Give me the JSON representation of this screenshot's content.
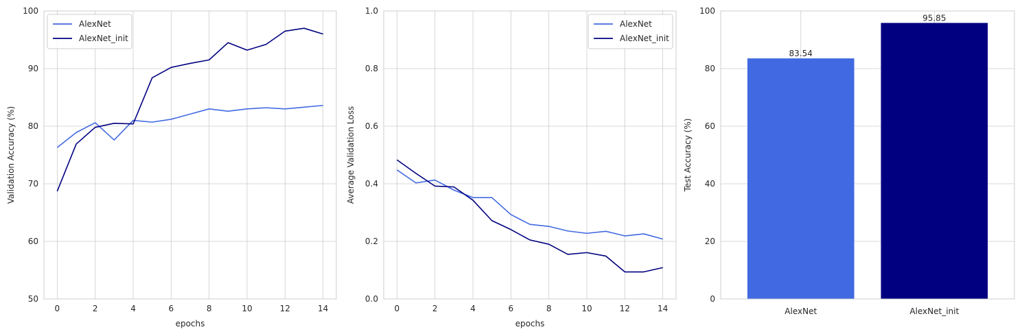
{
  "chart_data": [
    {
      "type": "line",
      "xlabel": "epochs",
      "ylabel": "Validation Accuracy (%)",
      "xlim": [
        -0.7,
        14.7
      ],
      "ylim": [
        50,
        100
      ],
      "xticks": [
        "0",
        "2",
        "4",
        "6",
        "8",
        "10",
        "12",
        "14"
      ],
      "yticks": [
        "50",
        "60",
        "70",
        "80",
        "90",
        "100"
      ],
      "grid": true,
      "legend_position": "upper left",
      "x": [
        0,
        1,
        2,
        3,
        4,
        5,
        6,
        7,
        8,
        9,
        10,
        11,
        12,
        13,
        14
      ],
      "series": [
        {
          "name": "AlexNet",
          "color": "#4169e1",
          "values": [
            76.3,
            78.9,
            80.6,
            77.6,
            81.0,
            80.7,
            81.2,
            82.1,
            83.0,
            82.6,
            83.0,
            83.2,
            83.0,
            83.3,
            83.6
          ]
        },
        {
          "name": "AlexNet_init",
          "color": "#000080",
          "values": [
            68.7,
            76.9,
            79.8,
            80.5,
            80.4,
            88.4,
            90.2,
            90.9,
            91.5,
            94.5,
            93.2,
            94.2,
            96.5,
            97.0,
            96.0
          ]
        }
      ]
    },
    {
      "type": "line",
      "xlabel": "epochs",
      "ylabel": "Average Validation Loss",
      "xlim": [
        -0.7,
        14.7
      ],
      "ylim": [
        0,
        1
      ],
      "xticks": [
        "0",
        "2",
        "4",
        "6",
        "8",
        "10",
        "12",
        "14"
      ],
      "yticks": [
        "0.0",
        "0.2",
        "0.4",
        "0.6",
        "0.8",
        "1.0"
      ],
      "grid": true,
      "legend_position": "upper right",
      "x": [
        0,
        1,
        2,
        3,
        4,
        5,
        6,
        7,
        8,
        9,
        10,
        11,
        12,
        13,
        14
      ],
      "series": [
        {
          "name": "AlexNet",
          "color": "#4169e1",
          "values": [
            0.448,
            0.403,
            0.413,
            0.378,
            0.352,
            0.352,
            0.293,
            0.259,
            0.252,
            0.236,
            0.228,
            0.235,
            0.219,
            0.226,
            0.208
          ]
        },
        {
          "name": "AlexNet_init",
          "color": "#000080",
          "values": [
            0.483,
            0.436,
            0.392,
            0.389,
            0.343,
            0.272,
            0.241,
            0.205,
            0.19,
            0.155,
            0.161,
            0.149,
            0.094,
            0.094,
            0.109
          ]
        }
      ]
    },
    {
      "type": "bar",
      "xlabel": "",
      "ylabel": "Test Accuracy (%)",
      "ylim": [
        0,
        100
      ],
      "yticks": [
        "0",
        "20",
        "40",
        "60",
        "80",
        "100"
      ],
      "grid": true,
      "categories": [
        "AlexNet",
        "AlexNet_init"
      ],
      "values": [
        83.54,
        95.85
      ],
      "value_labels": [
        "83.54",
        "95.85"
      ],
      "colors": [
        "#4169e1",
        "#000080"
      ]
    }
  ]
}
